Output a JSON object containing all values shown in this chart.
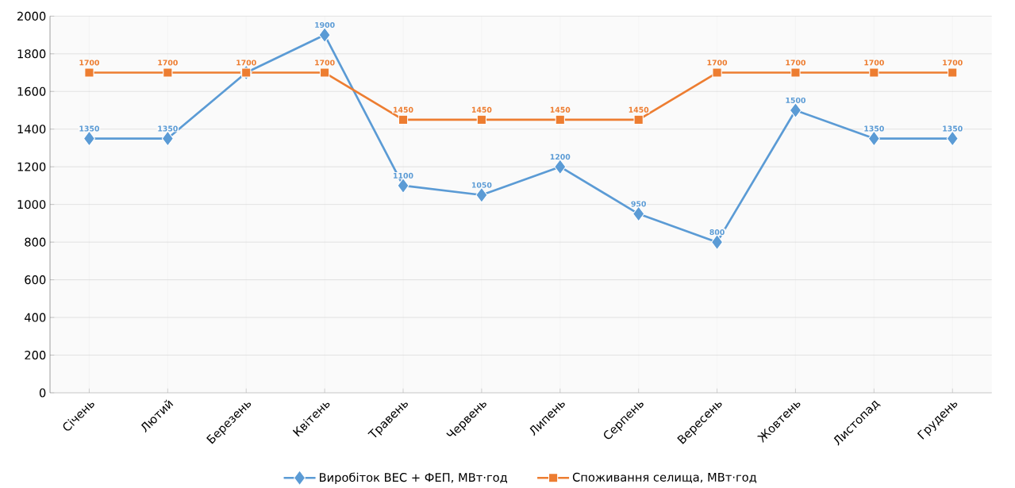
{
  "chart_data": {
    "type": "line",
    "categories": [
      "Січень",
      "Лютий",
      "Березень",
      "Квітень",
      "Травень",
      "Червень",
      "Липень",
      "Серпень",
      "Вересень",
      "Жовтень",
      "Листопад",
      "Грудень"
    ],
    "series": [
      {
        "name": "Виробіток ВЕС + ФЕП, МВт·год",
        "color": "#5b9bd5",
        "marker": "diamond",
        "values": [
          1350,
          1350,
          1700,
          1900,
          1100,
          1050,
          1200,
          950,
          800,
          1500,
          1350,
          1350
        ],
        "value_labels": [
          "1350",
          "1350",
          null,
          "1900",
          "1100",
          "1050",
          "1200",
          "950",
          "800",
          "1500",
          "1350",
          "1350"
        ]
      },
      {
        "name": "Споживання селища, МВт·год",
        "color": "#ed7d31",
        "marker": "square",
        "values": [
          1700,
          1700,
          1700,
          1700,
          1450,
          1450,
          1450,
          1450,
          1700,
          1700,
          1700,
          1700
        ],
        "value_labels": [
          "1700",
          "1700",
          "1700",
          "1700",
          "1450",
          "1450",
          "1450",
          "1450",
          "1700",
          "1700",
          "1700",
          "1700"
        ]
      }
    ],
    "ylim": [
      0,
      2000
    ],
    "yticks": [
      0,
      200,
      400,
      600,
      800,
      1000,
      1200,
      1400,
      1600,
      1800,
      2000
    ],
    "grid": true,
    "legend": "bottom",
    "line_style": "solid"
  }
}
